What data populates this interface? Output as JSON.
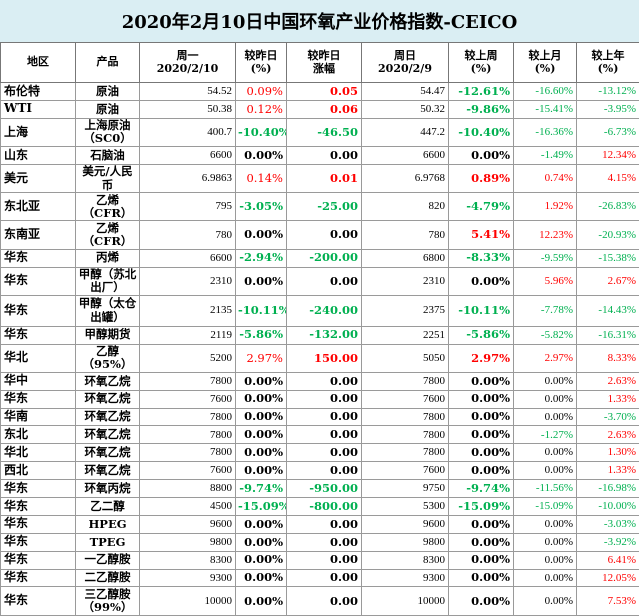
{
  "title": "2020年2月10日中国环氧产业价格指数-CEICO",
  "colors": {
    "up": "#ff0000",
    "down": "#00b050",
    "flat": "#000000",
    "title_bg": "#daeef3"
  },
  "header": {
    "region": "地区",
    "product": "产品",
    "mon_l1": "周一",
    "mon_l2": "2020/2/10",
    "dod_pct_l1": "较昨日",
    "dod_pct_l2": "(%)",
    "dod_abs_l1": "较昨日",
    "dod_abs_l2": "涨幅",
    "sun_l1": "周日",
    "sun_l2": "2020/2/9",
    "wow_l1": "较上周",
    "wow_l2": "(%)",
    "mom_l1": "较上月",
    "mom_l2": "(%)",
    "yoy_l1": "较上年",
    "yoy_l2": "(%)"
  },
  "rows": [
    {
      "region": "布伦特",
      "product": "原油",
      "mon": "54.52",
      "dod_pct": "0.09%",
      "dod_abs": "0.05",
      "sun": "54.47",
      "wow": "-12.61%",
      "mom": "-16.60%",
      "yoy": "-13.12%"
    },
    {
      "region": "WTI",
      "product": "原油",
      "mon": "50.38",
      "dod_pct": "0.12%",
      "dod_abs": "0.06",
      "sun": "50.32",
      "wow": "-9.86%",
      "mom": "-15.41%",
      "yoy": "-3.95%"
    },
    {
      "region": "上海",
      "product": "上海原油（SC0）",
      "mon": "400.7",
      "dod_pct": "-10.40%",
      "dod_abs": "-46.50",
      "sun": "447.2",
      "wow": "-10.40%",
      "mom": "-16.36%",
      "yoy": "-6.73%"
    },
    {
      "region": "山东",
      "product": "石脑油",
      "mon": "6600",
      "dod_pct": "0.00%",
      "dod_abs": "0.00",
      "sun": "6600",
      "wow": "0.00%",
      "mom": "-1.49%",
      "yoy": "12.34%"
    },
    {
      "region": "美元",
      "product": "美元/人民币",
      "mon": "6.9863",
      "dod_pct": "0.14%",
      "dod_abs": "0.01",
      "sun": "6.9768",
      "wow": "0.89%",
      "mom": "0.74%",
      "yoy": "4.15%"
    },
    {
      "region": "东北亚",
      "product": "乙烯（CFR）",
      "mon": "795",
      "dod_pct": "-3.05%",
      "dod_abs": "-25.00",
      "sun": "820",
      "wow": "-4.79%",
      "mom": "1.92%",
      "yoy": "-26.83%"
    },
    {
      "region": "东南亚",
      "product": "乙烯（CFR）",
      "mon": "780",
      "dod_pct": "0.00%",
      "dod_abs": "0.00",
      "sun": "780",
      "wow": "5.41%",
      "mom": "12.23%",
      "yoy": "-20.93%"
    },
    {
      "region": "华东",
      "product": "丙烯",
      "mon": "6600",
      "dod_pct": "-2.94%",
      "dod_abs": "-200.00",
      "sun": "6800",
      "wow": "-8.33%",
      "mom": "-9.59%",
      "yoy": "-15.38%"
    },
    {
      "region": "华东",
      "product": "甲醇（苏北出厂）",
      "mon": "2310",
      "dod_pct": "0.00%",
      "dod_abs": "0.00",
      "sun": "2310",
      "wow": "0.00%",
      "mom": "5.96%",
      "yoy": "2.67%"
    },
    {
      "region": "华东",
      "product": "甲醇（太仓出罐）",
      "mon": "2135",
      "dod_pct": "-10.11%",
      "dod_abs": "-240.00",
      "sun": "2375",
      "wow": "-10.11%",
      "mom": "-7.78%",
      "yoy": "-14.43%"
    },
    {
      "region": "华东",
      "product": "甲醇期货",
      "mon": "2119",
      "dod_pct": "-5.86%",
      "dod_abs": "-132.00",
      "sun": "2251",
      "wow": "-5.86%",
      "mom": "-5.82%",
      "yoy": "-16.31%"
    },
    {
      "region": "华北",
      "product": "乙醇（95%）",
      "mon": "5200",
      "dod_pct": "2.97%",
      "dod_abs": "150.00",
      "sun": "5050",
      "wow": "2.97%",
      "mom": "2.97%",
      "yoy": "8.33%"
    },
    {
      "region": "华中",
      "product": "环氧乙烷",
      "mon": "7800",
      "dod_pct": "0.00%",
      "dod_abs": "0.00",
      "sun": "7800",
      "wow": "0.00%",
      "mom": "0.00%",
      "yoy": "2.63%"
    },
    {
      "region": "华东",
      "product": "环氧乙烷",
      "mon": "7600",
      "dod_pct": "0.00%",
      "dod_abs": "0.00",
      "sun": "7600",
      "wow": "0.00%",
      "mom": "0.00%",
      "yoy": "1.33%"
    },
    {
      "region": "华南",
      "product": "环氧乙烷",
      "mon": "7800",
      "dod_pct": "0.00%",
      "dod_abs": "0.00",
      "sun": "7800",
      "wow": "0.00%",
      "mom": "0.00%",
      "yoy": "-3.70%"
    },
    {
      "region": "东北",
      "product": "环氧乙烷",
      "mon": "7800",
      "dod_pct": "0.00%",
      "dod_abs": "0.00",
      "sun": "7800",
      "wow": "0.00%",
      "mom": "-1.27%",
      "yoy": "2.63%"
    },
    {
      "region": "华北",
      "product": "环氧乙烷",
      "mon": "7800",
      "dod_pct": "0.00%",
      "dod_abs": "0.00",
      "sun": "7800",
      "wow": "0.00%",
      "mom": "0.00%",
      "yoy": "1.30%"
    },
    {
      "region": "西北",
      "product": "环氧乙烷",
      "mon": "7600",
      "dod_pct": "0.00%",
      "dod_abs": "0.00",
      "sun": "7600",
      "wow": "0.00%",
      "mom": "0.00%",
      "yoy": "1.33%"
    },
    {
      "region": "华东",
      "product": "环氧丙烷",
      "mon": "8800",
      "dod_pct": "-9.74%",
      "dod_abs": "-950.00",
      "sun": "9750",
      "wow": "-9.74%",
      "mom": "-11.56%",
      "yoy": "-16.98%"
    },
    {
      "region": "华东",
      "product": "乙二醇",
      "mon": "4500",
      "dod_pct": "-15.09%",
      "dod_abs": "-800.00",
      "sun": "5300",
      "wow": "-15.09%",
      "mom": "-15.09%",
      "yoy": "-10.00%"
    },
    {
      "region": "华东",
      "product": "HPEG",
      "mon": "9600",
      "dod_pct": "0.00%",
      "dod_abs": "0.00",
      "sun": "9600",
      "wow": "0.00%",
      "mom": "0.00%",
      "yoy": "-3.03%"
    },
    {
      "region": "华东",
      "product": "TPEG",
      "mon": "9800",
      "dod_pct": "0.00%",
      "dod_abs": "0.00",
      "sun": "9800",
      "wow": "0.00%",
      "mom": "0.00%",
      "yoy": "-3.92%"
    },
    {
      "region": "华东",
      "product": "一乙醇胺",
      "mon": "8300",
      "dod_pct": "0.00%",
      "dod_abs": "0.00",
      "sun": "8300",
      "wow": "0.00%",
      "mom": "0.00%",
      "yoy": "6.41%"
    },
    {
      "region": "华东",
      "product": "二乙醇胺",
      "mon": "9300",
      "dod_pct": "0.00%",
      "dod_abs": "0.00",
      "sun": "9300",
      "wow": "0.00%",
      "mom": "0.00%",
      "yoy": "12.05%"
    },
    {
      "region": "华东",
      "product": "三乙醇胺（99%）",
      "mon": "10000",
      "dod_pct": "0.00%",
      "dod_abs": "0.00",
      "sun": "10000",
      "wow": "0.00%",
      "mom": "0.00%",
      "yoy": "7.53%"
    }
  ]
}
